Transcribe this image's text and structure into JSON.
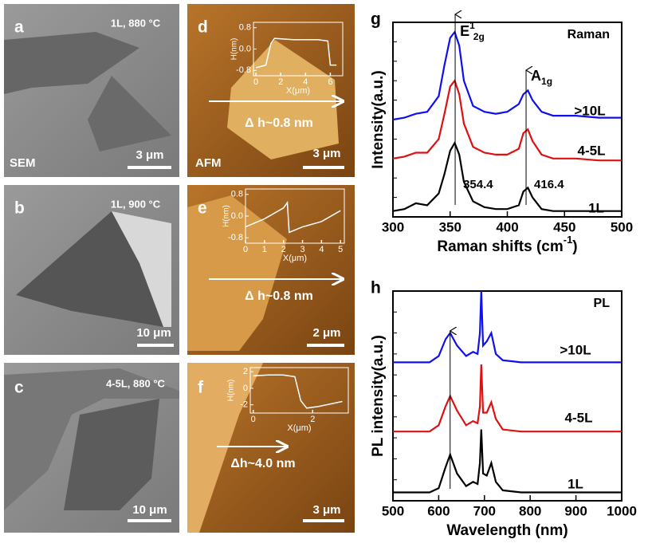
{
  "panels": [
    {
      "label": "a",
      "condition": "1L, 880 °C",
      "method": "SEM",
      "scale": "3 μm"
    },
    {
      "label": "b",
      "condition": "1L, 900 °C",
      "scale": "10 μm"
    },
    {
      "label": "c",
      "condition": "4-5L, 880 °C",
      "scale": "10 μm"
    },
    {
      "label": "d",
      "method": "AFM",
      "height": "Δ h~0.8 nm",
      "scale": "3 μm"
    },
    {
      "label": "e",
      "height": "Δ h~0.8 nm",
      "scale": "2 μm"
    },
    {
      "label": "f",
      "height": "Δh~4.0 nm",
      "scale": "3 μm"
    }
  ],
  "chart_data": [
    {
      "type": "line",
      "panel_label": "g",
      "annotation": "Raman",
      "xlabel": {
        "text": "Raman shifts (cm",
        "sup": "-1",
        "tail": ")"
      },
      "ylabel": "Intensity(a.u.)",
      "mode_labels": [
        {
          "base": "E",
          "sup": "1",
          "sub": "2g"
        },
        {
          "base": "A",
          "sub": "1g"
        }
      ],
      "peaks": [
        354.4,
        416.4
      ],
      "xlim": [
        300,
        500
      ],
      "xticks": [
        300,
        350,
        400,
        450,
        500
      ],
      "ylim": [
        0,
        10
      ],
      "x": [
        300,
        310,
        320,
        330,
        340,
        345,
        350,
        354,
        358,
        362,
        370,
        380,
        390,
        400,
        410,
        414,
        418,
        422,
        430,
        440,
        460,
        480,
        500
      ],
      "series": [
        {
          "name": ">10L",
          "color": "#1010ee",
          "values": [
            5.0,
            5.1,
            5.3,
            5.4,
            6.2,
            7.8,
            9.2,
            9.5,
            8.8,
            7.0,
            5.7,
            5.4,
            5.3,
            5.4,
            5.8,
            6.3,
            6.5,
            6.0,
            5.4,
            5.2,
            5.2,
            5.1,
            5.1
          ]
        },
        {
          "name": "4-5L",
          "color": "#e01010",
          "values": [
            3.0,
            3.1,
            3.3,
            3.3,
            4.0,
            5.3,
            6.7,
            7.0,
            6.3,
            4.8,
            3.6,
            3.3,
            3.2,
            3.2,
            3.5,
            4.3,
            4.5,
            3.9,
            3.2,
            3.0,
            3.0,
            2.9,
            2.9
          ]
        },
        {
          "name": "1L",
          "color": "#000000",
          "values": [
            0.3,
            0.4,
            0.7,
            0.6,
            1.2,
            2.2,
            3.4,
            3.8,
            3.2,
            1.8,
            0.8,
            0.5,
            0.4,
            0.4,
            0.6,
            1.3,
            1.5,
            1.0,
            0.4,
            0.3,
            0.3,
            0.3,
            0.3
          ]
        }
      ]
    },
    {
      "type": "line",
      "panel_label": "h",
      "annotation": "PL",
      "xlabel": {
        "text": "Wavelength (nm)"
      },
      "ylabel": "PL intensity(a.u.)",
      "peaks": [
        625
      ],
      "xlim": [
        500,
        1000
      ],
      "xticks": [
        500,
        600,
        700,
        800,
        900,
        1000
      ],
      "ylim": [
        0,
        10
      ],
      "x": [
        500,
        550,
        580,
        600,
        615,
        625,
        640,
        660,
        675,
        685,
        690,
        693,
        697,
        705,
        715,
        725,
        740,
        780,
        850,
        1000
      ],
      "series": [
        {
          "name": ">10L",
          "color": "#1010ee",
          "values": [
            6.6,
            6.6,
            6.6,
            6.9,
            7.7,
            8.0,
            7.4,
            6.9,
            7.1,
            7.0,
            8.0,
            10.0,
            7.4,
            7.6,
            8.0,
            7.0,
            6.7,
            6.6,
            6.6,
            6.6
          ]
        },
        {
          "name": "4-5L",
          "color": "#e01010",
          "values": [
            3.3,
            3.3,
            3.3,
            3.6,
            4.5,
            5.0,
            4.3,
            3.6,
            3.8,
            3.7,
            4.5,
            6.5,
            4.2,
            4.2,
            4.7,
            3.9,
            3.4,
            3.3,
            3.3,
            3.3
          ]
        },
        {
          "name": "1L",
          "color": "#000000",
          "values": [
            0.4,
            0.4,
            0.4,
            0.6,
            1.6,
            2.2,
            1.3,
            0.7,
            0.9,
            0.8,
            1.8,
            3.4,
            1.3,
            1.2,
            1.8,
            0.9,
            0.5,
            0.4,
            0.4,
            0.4
          ]
        }
      ]
    },
    {
      "type": "line",
      "xlabel": {
        "text": "X(μm)"
      },
      "ylabel": "H(nm)",
      "xlim": [
        -0.2,
        7
      ],
      "xticks": [
        0,
        2,
        4,
        6
      ],
      "ylim": [
        -1,
        1
      ],
      "yticks": [
        0.8,
        {
          "value": 0,
          "label": "0.0"
        },
        -0.8
      ],
      "x": [
        0,
        0.8,
        1.2,
        1.5,
        3,
        5,
        5.8,
        6,
        6.5
      ],
      "series": [
        {
          "color": "#ffffff",
          "values": [
            -0.7,
            -0.6,
            0.2,
            0.4,
            0.35,
            0.35,
            0.3,
            -0.6,
            -0.6
          ]
        }
      ]
    },
    {
      "type": "line",
      "xlabel": {
        "text": "X(μm)"
      },
      "ylabel": "H(nm)",
      "xlim": [
        0,
        5.2
      ],
      "xticks": [
        0,
        1,
        2,
        3,
        4,
        5
      ],
      "ylim": [
        -1,
        1
      ],
      "yticks": [
        0.8,
        {
          "value": 0,
          "label": "0.0"
        },
        -0.8
      ],
      "x": [
        0,
        1,
        2,
        2.2,
        2.3,
        3,
        4,
        5
      ],
      "series": [
        {
          "color": "#ffffff",
          "values": [
            -0.4,
            -0.1,
            0.3,
            0.5,
            -0.6,
            -0.4,
            -0.2,
            0.2
          ]
        }
      ]
    },
    {
      "type": "line",
      "xlabel": {
        "text": "X(μm)"
      },
      "ylabel": "H(nm)",
      "xlim": [
        -0.1,
        3.2
      ],
      "xticks": [
        0,
        2
      ],
      "ylim": [
        -3,
        2.5
      ],
      "yticks": [
        2,
        0,
        -2
      ],
      "x": [
        0,
        0.5,
        1,
        1.4,
        1.6,
        1.8,
        2.2,
        3
      ],
      "series": [
        {
          "color": "#ffffff",
          "values": [
            1.5,
            1.6,
            1.6,
            1.4,
            -1.5,
            -2.4,
            -2.2,
            -1.6
          ]
        }
      ]
    }
  ]
}
